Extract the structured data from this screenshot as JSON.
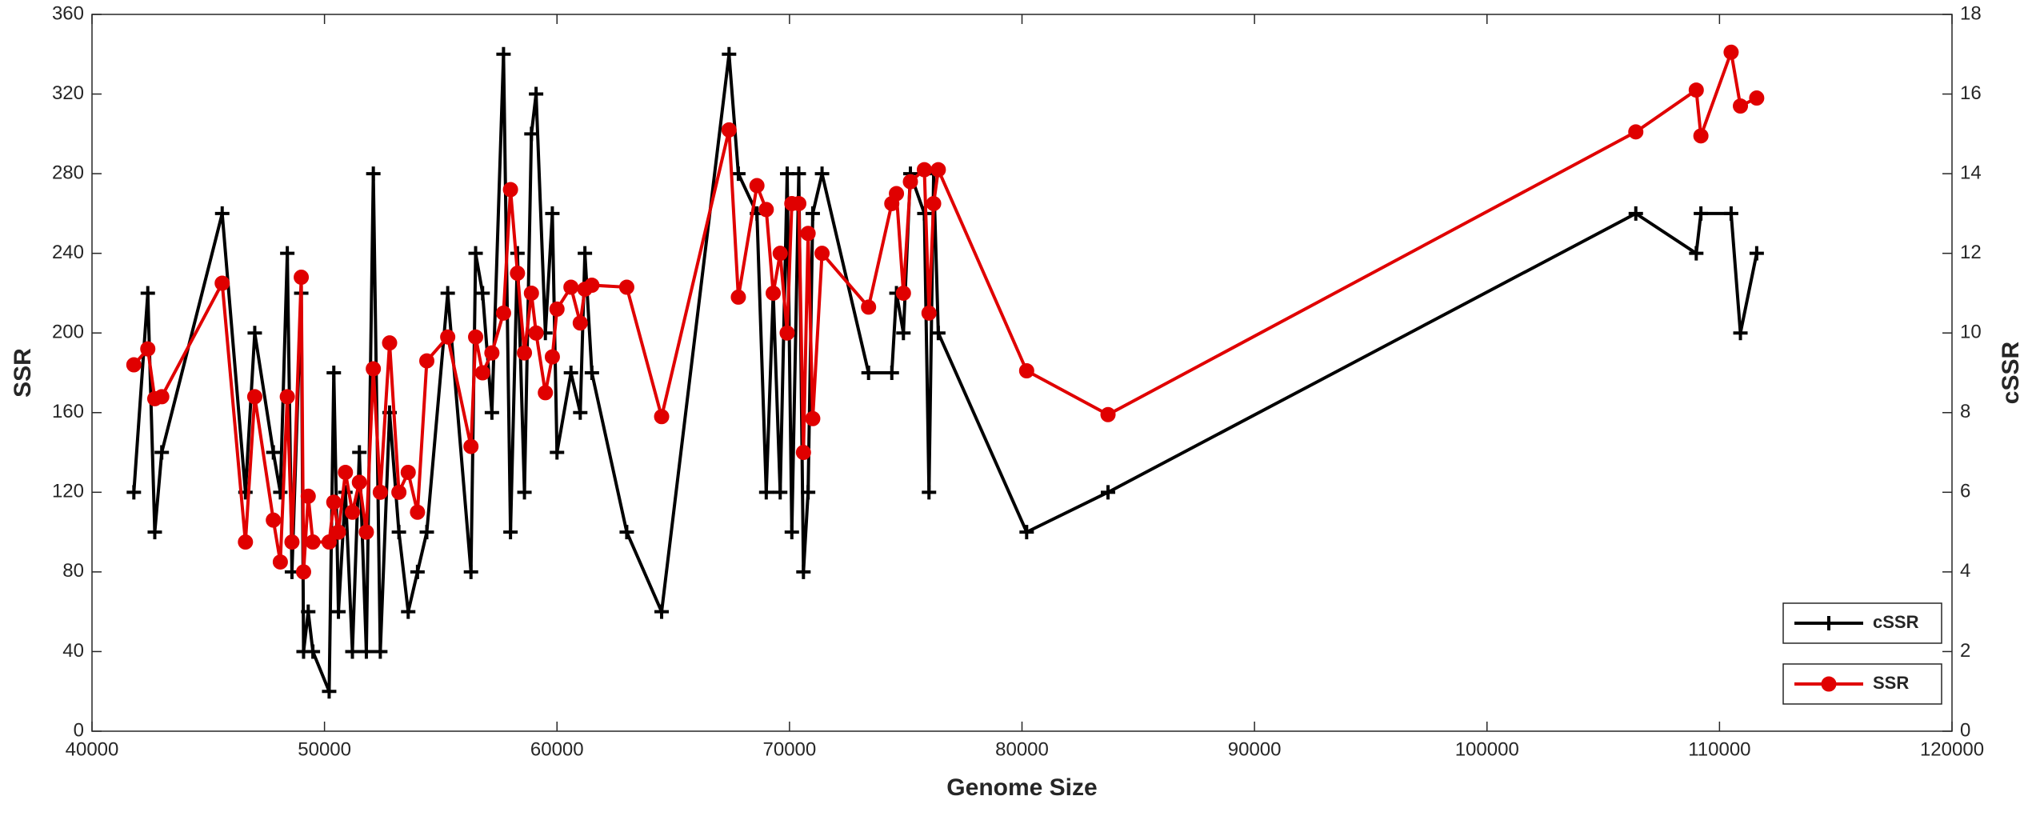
{
  "chart_data": {
    "type": "line",
    "x": [
      41800,
      42400,
      42700,
      43000,
      45600,
      46600,
      47000,
      47800,
      48100,
      48400,
      48600,
      49000,
      49100,
      49300,
      49500,
      50200,
      50400,
      50600,
      50900,
      51200,
      51500,
      51800,
      52100,
      52400,
      52800,
      53200,
      53600,
      54000,
      54400,
      55300,
      56300,
      56500,
      56800,
      57200,
      57700,
      58000,
      58300,
      58600,
      58900,
      59100,
      59500,
      59800,
      60000,
      60600,
      61000,
      61200,
      61500,
      63000,
      64500,
      67400,
      67800,
      68600,
      69000,
      69300,
      69600,
      69900,
      70100,
      70400,
      70600,
      70800,
      71000,
      71400,
      73400,
      74400,
      74600,
      74900,
      75200,
      75800,
      76000,
      76200,
      76400,
      80200,
      83700,
      106400,
      109000,
      109200,
      110500,
      110900,
      111600
    ],
    "series": [
      {
        "name": "cSSR",
        "color": "#000000",
        "marker": "plus",
        "axis": "y2",
        "values": [
          6,
          11,
          5,
          7,
          13,
          6,
          10,
          7,
          6,
          12,
          4,
          11,
          2,
          3,
          2,
          1,
          9,
          3,
          6,
          2,
          7,
          2,
          14,
          2,
          8,
          5,
          3,
          4,
          5,
          11,
          4,
          12,
          11,
          8,
          17,
          5,
          12,
          6,
          15,
          16,
          10,
          13,
          7,
          9,
          8,
          12,
          9,
          5,
          3,
          17,
          14,
          13,
          6,
          11,
          6,
          14,
          5,
          14,
          4,
          6,
          13,
          14,
          9,
          9,
          11,
          10,
          14,
          13,
          6,
          14,
          10,
          5,
          6,
          13,
          12,
          13,
          13,
          10,
          12
        ]
      },
      {
        "name": "SSR",
        "color": "#e00000",
        "marker": "circle",
        "values": [
          184,
          192,
          167,
          168,
          225,
          95,
          168,
          106,
          85,
          168,
          95,
          228,
          80,
          118,
          95,
          95,
          115,
          100,
          130,
          110,
          125,
          100,
          182,
          120,
          195,
          120,
          130,
          110,
          186,
          198,
          143,
          198,
          180,
          190,
          210,
          272,
          230,
          190,
          220,
          200,
          170,
          188,
          212,
          223,
          205,
          222,
          224,
          223,
          158,
          302,
          218,
          274,
          262,
          220,
          240,
          200,
          265,
          265,
          140,
          250,
          157,
          240,
          213,
          265,
          270,
          220,
          276,
          282,
          210,
          265,
          282,
          181,
          159,
          301,
          322,
          299,
          341,
          314,
          318
        ]
      }
    ],
    "xlabel": "Genome Size",
    "ylabel": "SSR",
    "y2label": "cSSR",
    "xlim": [
      40000,
      120000
    ],
    "xticks": [
      40000,
      50000,
      60000,
      70000,
      80000,
      90000,
      100000,
      110000,
      120000
    ],
    "ylim": [
      0,
      360
    ],
    "yticks": [
      0,
      40,
      80,
      120,
      160,
      200,
      240,
      280,
      320,
      360
    ],
    "y2lim": [
      0,
      18
    ],
    "y2ticks": [
      0,
      2,
      4,
      6,
      8,
      10,
      12,
      14,
      16,
      18
    ],
    "grid": false,
    "legend": "lower right"
  }
}
